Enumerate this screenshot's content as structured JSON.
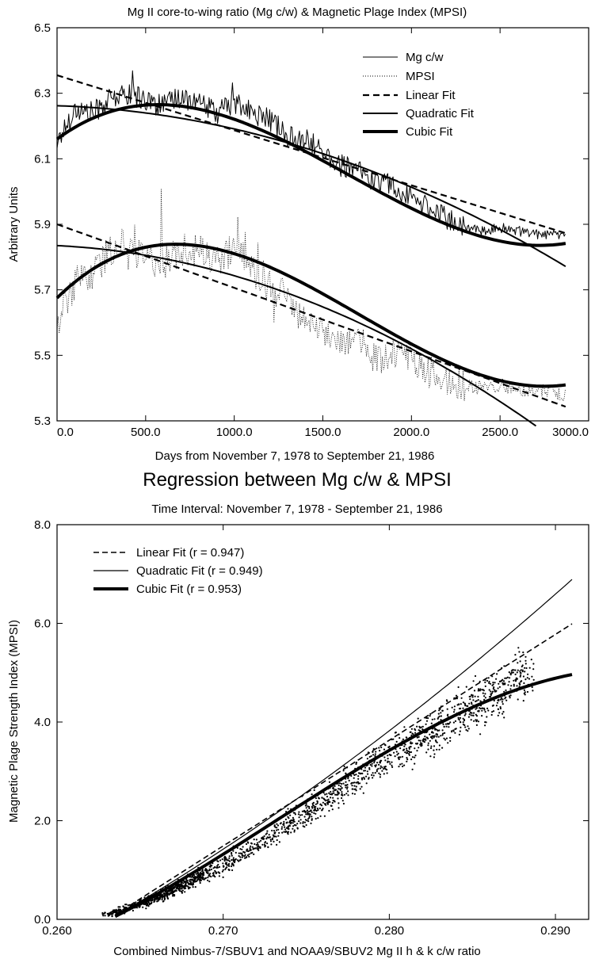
{
  "chart_data": [
    {
      "type": "line",
      "title": "Mg II core-to-wing ratio (Mg c/w) & Magnetic Plage Index (MPSI)",
      "xlabel": "Days from November 7, 1978 to September 21, 1986",
      "ylabel": "Arbitrary Units",
      "xlim": [
        0,
        3000
      ],
      "ylim": [
        5.3,
        6.5
      ],
      "x_tick_labels": [
        "0.0",
        "500.0",
        "1000.0",
        "1500.0",
        "2000.0",
        "2500.0",
        "3000.0"
      ],
      "y_tick_labels": [
        "5.3",
        "5.5",
        "5.7",
        "5.9",
        "6.1",
        "6.3",
        "6.5"
      ],
      "grid": false,
      "legend_placement": "top-right",
      "legend": [
        "Mg c/w",
        "MPSI",
        "Linear Fit",
        "Quadratic Fit",
        "Cubic Fit"
      ],
      "series": [
        {
          "name": "Mg c/w",
          "style": "thin-solid",
          "x": [
            0,
            100,
            200,
            300,
            400,
            500,
            600,
            700,
            800,
            900,
            1000,
            1100,
            1200,
            1300,
            1400,
            1500,
            1600,
            1700,
            1800,
            1900,
            2000,
            2100,
            2200,
            2300,
            2400,
            2500,
            2600,
            2700,
            2800,
            2870
          ],
          "y": [
            6.15,
            6.25,
            6.24,
            6.28,
            6.3,
            6.28,
            6.26,
            6.29,
            6.27,
            6.24,
            6.27,
            6.24,
            6.22,
            6.17,
            6.16,
            6.12,
            6.08,
            6.06,
            6.03,
            6.02,
            5.98,
            5.95,
            5.92,
            5.89,
            5.88,
            5.89,
            5.88,
            5.87,
            5.87,
            5.86
          ]
        },
        {
          "name": "MPSI",
          "style": "dotted",
          "x": [
            0,
            100,
            200,
            300,
            400,
            500,
            600,
            700,
            800,
            900,
            1000,
            1100,
            1200,
            1300,
            1400,
            1500,
            1600,
            1700,
            1800,
            1900,
            2000,
            2100,
            2200,
            2300,
            2400,
            2500,
            2600,
            2700,
            2800,
            2870
          ],
          "y": [
            5.6,
            5.72,
            5.75,
            5.82,
            5.85,
            5.8,
            5.78,
            5.82,
            5.82,
            5.78,
            5.83,
            5.76,
            5.73,
            5.68,
            5.6,
            5.57,
            5.55,
            5.55,
            5.49,
            5.5,
            5.49,
            5.45,
            5.42,
            5.41,
            5.4,
            5.41,
            5.4,
            5.39,
            5.39,
            5.38
          ]
        },
        {
          "name": "Linear Fit",
          "style": "dashed",
          "fn": "poly",
          "coef": [
            6.355,
            -0.000168
          ],
          "x_range": [
            0,
            2870
          ]
        },
        {
          "name": "Quadratic Fit",
          "style": "medium-solid",
          "fn": "poly",
          "coef": [
            6.262,
            -1.74e-05,
            -5.35e-08
          ],
          "x_range": [
            0,
            2870
          ]
        },
        {
          "name": "Cubic Fit",
          "style": "thick-solid",
          "fn": "poly",
          "coef": [
            6.16,
            0.000398,
            -4.23e-07,
            8.56e-11
          ],
          "x_range": [
            0,
            2870
          ]
        },
        {
          "name": "Linear Fit",
          "style": "dashed",
          "fn": "poly",
          "coef": [
            5.9,
            -0.000194
          ],
          "x_range": [
            0,
            2870
          ]
        },
        {
          "name": "Quadratic Fit",
          "style": "medium-solid",
          "fn": "poly",
          "coef": [
            5.835,
            -2.64e-05,
            -6.56e-08
          ],
          "x_range": [
            0,
            2870
          ]
        },
        {
          "name": "Cubic Fit",
          "style": "thick-solid",
          "fn": "poly",
          "coef": [
            5.675,
            0.000533,
            -4.94e-07,
            9.62e-11
          ],
          "x_range": [
            0,
            2870
          ]
        }
      ]
    },
    {
      "type": "scatter",
      "title": "Regression between Mg c/w & MPSI",
      "subtitle": "Time Interval: November 7, 1978 - September 21, 1986",
      "xlabel": "Combined Nimbus-7/SBUV1 and NOAA9/SBUV2 Mg II h & k c/w ratio",
      "ylabel": "Magnetic Plage Strength Index (MPSI)",
      "xlim": [
        0.26,
        0.292
      ],
      "ylim": [
        0,
        8
      ],
      "x_tick_labels": [
        "0.260",
        "0.270",
        "0.280",
        "0.290"
      ],
      "y_tick_labels": [
        "0.0",
        "2.0",
        "4.0",
        "6.0",
        "8.0"
      ],
      "grid": false,
      "legend_placement": "top-left",
      "legend": [
        "Linear Fit (r = 0.947)",
        "Quadratic Fit (r = 0.949)",
        "Cubic Fit (r = 0.953)"
      ],
      "points": {
        "trend_x": [
          0.263,
          0.265,
          0.267,
          0.27,
          0.273,
          0.276,
          0.279,
          0.282,
          0.285,
          0.288,
          0.29
        ],
        "trend_y": [
          0.1,
          0.3,
          0.6,
          1.1,
          1.7,
          2.4,
          3.1,
          3.7,
          4.3,
          4.9,
          5.2
        ]
      },
      "series": [
        {
          "name": "Linear Fit (r = 0.947)",
          "style": "dashed",
          "fn": "poly",
          "coef": [
            -56.4,
            214.4
          ],
          "x_range": [
            0.2635,
            0.291
          ]
        },
        {
          "name": "Quadratic Fit (r = 0.949)",
          "style": "thin-solid",
          "fn": "poly",
          "coef": [
            0.06,
            197.6,
            1845
          ],
          "x_range": [
            0.2635,
            0.291
          ],
          "center": 0.2635
        },
        {
          "name": "Cubic Fit (r = 0.953)",
          "style": "thick-solid",
          "fn": "poly",
          "coef": [
            0.06,
            170,
            4700,
            -160000
          ],
          "x_range": [
            0.2635,
            0.291
          ],
          "center": 0.2635
        }
      ]
    }
  ]
}
